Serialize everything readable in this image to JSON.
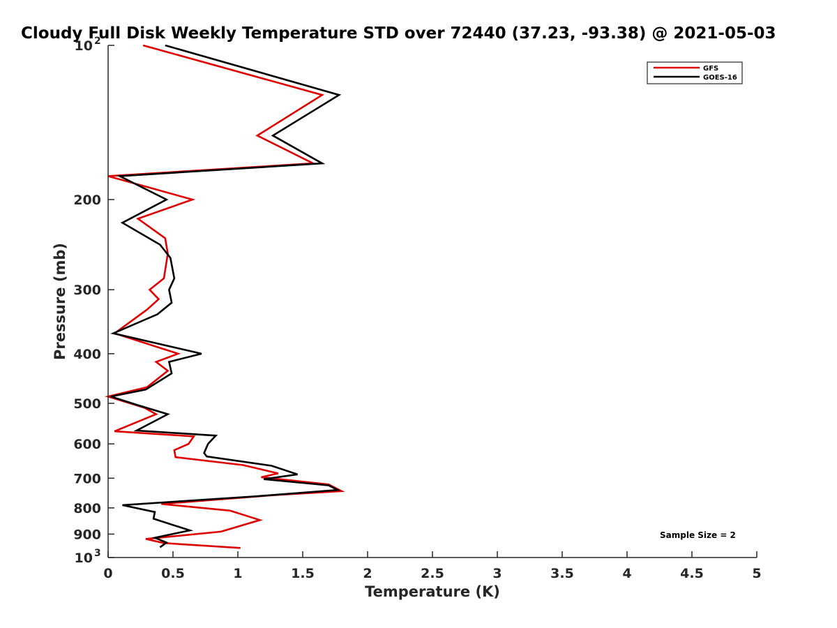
{
  "chart_data": {
    "type": "line",
    "title": "Cloudy Full Disk Weekly Temperature STD over 72440 (37.23, -93.38) @ 2021-05-03",
    "xlabel": "Temperature (K)",
    "ylabel": "Pressure (mb)",
    "xlim": [
      0,
      5
    ],
    "ylim": [
      100,
      1000
    ],
    "y_scale": "log",
    "y_reversed": true,
    "x_ticks": [
      "0",
      "0.5",
      "1",
      "1.5",
      "2",
      "2.5",
      "3",
      "3.5",
      "4",
      "4.5",
      "5"
    ],
    "y_ticks": [
      {
        "value": 100,
        "base": "10",
        "exp": "2"
      },
      {
        "value": 200,
        "label": "200"
      },
      {
        "value": 300,
        "label": "300"
      },
      {
        "value": 400,
        "label": "400"
      },
      {
        "value": 500,
        "label": "500"
      },
      {
        "value": 600,
        "label": "600"
      },
      {
        "value": 700,
        "label": "700"
      },
      {
        "value": 800,
        "label": "800"
      },
      {
        "value": 900,
        "label": "900"
      },
      {
        "value": 1000,
        "base": "10",
        "exp": "3"
      }
    ],
    "grid": false,
    "legend_position": "top-right",
    "annotation": "Sample Size = 2",
    "series": [
      {
        "name": "GFS",
        "color": "#e00000",
        "points": [
          [
            0.27,
            100
          ],
          [
            1.65,
            125
          ],
          [
            1.15,
            150
          ],
          [
            1.58,
            170
          ],
          [
            0.0,
            180
          ],
          [
            0.65,
            200
          ],
          [
            0.23,
            218
          ],
          [
            0.44,
            238
          ],
          [
            0.46,
            255
          ],
          [
            0.43,
            285
          ],
          [
            0.32,
            300
          ],
          [
            0.39,
            313
          ],
          [
            0.3,
            328
          ],
          [
            0.05,
            365
          ],
          [
            0.54,
            400
          ],
          [
            0.37,
            415
          ],
          [
            0.46,
            432
          ],
          [
            0.3,
            465
          ],
          [
            0.0,
            485
          ],
          [
            0.28,
            510
          ],
          [
            0.37,
            525
          ],
          [
            0.05,
            567
          ],
          [
            0.66,
            580
          ],
          [
            0.62,
            600
          ],
          [
            0.51,
            617
          ],
          [
            0.52,
            637
          ],
          [
            1.04,
            660
          ],
          [
            1.31,
            685
          ],
          [
            1.18,
            697
          ],
          [
            1.7,
            720
          ],
          [
            1.8,
            742
          ],
          [
            1.29,
            755
          ],
          [
            0.41,
            786
          ],
          [
            0.94,
            810
          ],
          [
            1.17,
            845
          ],
          [
            0.87,
            890
          ],
          [
            0.29,
            920
          ],
          [
            0.43,
            937
          ],
          [
            1.02,
            958
          ]
        ]
      },
      {
        "name": "GOES-16",
        "color": "#000000",
        "points": [
          [
            0.44,
            100
          ],
          [
            1.78,
            125
          ],
          [
            1.27,
            150
          ],
          [
            1.65,
            170
          ],
          [
            0.09,
            180
          ],
          [
            0.45,
            200
          ],
          [
            0.11,
            222
          ],
          [
            0.4,
            245
          ],
          [
            0.48,
            260
          ],
          [
            0.51,
            285
          ],
          [
            0.47,
            300
          ],
          [
            0.49,
            318
          ],
          [
            0.38,
            335
          ],
          [
            0.04,
            365
          ],
          [
            0.72,
            400
          ],
          [
            0.47,
            415
          ],
          [
            0.49,
            437
          ],
          [
            0.29,
            470
          ],
          [
            0.02,
            485
          ],
          [
            0.24,
            505
          ],
          [
            0.46,
            525
          ],
          [
            0.22,
            565
          ],
          [
            0.83,
            578
          ],
          [
            0.77,
            600
          ],
          [
            0.74,
            625
          ],
          [
            0.76,
            635
          ],
          [
            1.26,
            662
          ],
          [
            1.46,
            688
          ],
          [
            1.2,
            703
          ],
          [
            1.7,
            723
          ],
          [
            1.77,
            738
          ],
          [
            1.12,
            760
          ],
          [
            0.11,
            790
          ],
          [
            0.36,
            815
          ],
          [
            0.35,
            840
          ],
          [
            0.63,
            885
          ],
          [
            0.36,
            915
          ],
          [
            0.45,
            935
          ],
          [
            0.4,
            955
          ]
        ]
      }
    ]
  }
}
